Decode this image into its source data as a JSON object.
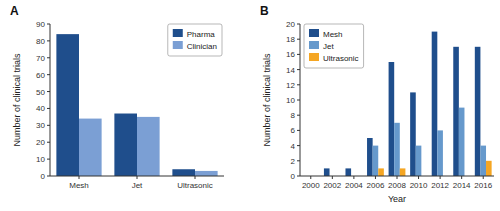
{
  "chart_data": [
    {
      "type": "bar",
      "title": "A",
      "categories": [
        "Mesh",
        "Jet",
        "Ultrasonic"
      ],
      "series": [
        {
          "name": "Pharma",
          "color": "#1f4e8c",
          "values": [
            84,
            37,
            4
          ]
        },
        {
          "name": "Clinician",
          "color": "#7b9fd4",
          "values": [
            34,
            35,
            3
          ]
        }
      ],
      "ylabel": "Number of clinical trials",
      "ylim": [
        0,
        90
      ],
      "yticks": [
        0,
        10,
        20,
        30,
        40,
        50,
        60,
        70,
        80,
        90
      ],
      "legend": "upper-right",
      "grid": false
    },
    {
      "type": "bar",
      "title": "B",
      "categories": [
        "2000",
        "2002",
        "2004",
        "2006",
        "2008",
        "2010",
        "2012",
        "2014",
        "2016"
      ],
      "series": [
        {
          "name": "Mesh",
          "color": "#1f4e8c",
          "values": [
            0,
            1,
            1,
            5,
            15,
            11,
            19,
            17,
            17
          ]
        },
        {
          "name": "Jet",
          "color": "#6699cc",
          "values": [
            0,
            0,
            0,
            4,
            7,
            4,
            6,
            9,
            4
          ]
        },
        {
          "name": "Ultrasonic",
          "color": "#f5a623",
          "values": [
            0,
            0,
            0,
            1,
            1,
            0,
            0,
            0,
            2
          ]
        }
      ],
      "xlabel": "Year",
      "ylabel": "Number of clinical trials",
      "ylim": [
        0,
        20
      ],
      "yticks": [
        0,
        2,
        4,
        6,
        8,
        10,
        12,
        14,
        16,
        18,
        20
      ],
      "legend": "upper-left",
      "grid": false
    }
  ]
}
